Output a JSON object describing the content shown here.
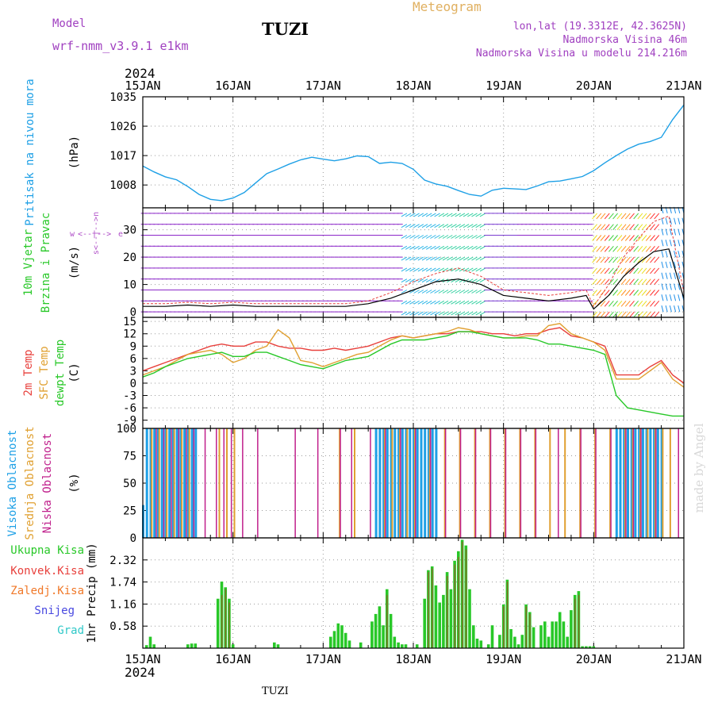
{
  "header": {
    "model_label": "Model",
    "model_name": "wrf-nmm_v3.9.1 e1km",
    "station": "TUZI",
    "meteogram": "Meteogram",
    "lonlat": "lon,lat (19.3312E, 42.3625N)",
    "altitude": "Nadmorska Visina 46m",
    "model_altitude": "Nadmorska Visina u modelu 214.216m",
    "footer_station": "TUZI",
    "watermark": "made by Angel",
    "year": "2024"
  },
  "time_axis": {
    "start": "2024-01-15T00:00Z",
    "end": "2024-01-21T00:00Z",
    "labels": [
      "15JAN",
      "16JAN",
      "17JAN",
      "18JAN",
      "19JAN",
      "20JAN",
      "21JAN"
    ]
  },
  "colors": {
    "pressure": "#1ea0e6",
    "t2m": "#e8403c",
    "tsfc": "#e0a030",
    "tdew": "#28c828",
    "high_cloud": "#1ea0e6",
    "mid_cloud": "#e0a030",
    "low_cloud": "#c0208c",
    "precip_total": "#28c828",
    "precip_conv": "#e8403c",
    "precip_freez": "#f07828",
    "snow": "#4848e0",
    "graupel": "#30c8c8",
    "wind_legend": "#b050c8",
    "header_purple": "#a040c0",
    "header_orange": "#e0b060"
  },
  "chart_data": [
    {
      "type": "line",
      "name": "pressure",
      "ylabel": "(hPa)",
      "side_labels": [
        "Pritisak na nivou mora"
      ],
      "ylim": [
        1001,
        1035
      ],
      "yticks": [
        1008,
        1017,
        1026,
        1035
      ],
      "grid": true,
      "series": [
        {
          "name": "Pritisak na nivou mora",
          "x": [
            0,
            3,
            6,
            9,
            12,
            15,
            18,
            21,
            24,
            27,
            30,
            33,
            36,
            39,
            42,
            45,
            48,
            51,
            54,
            57,
            60,
            63,
            66,
            69,
            72,
            75,
            78,
            81,
            84,
            87,
            90,
            93,
            96,
            99,
            102,
            105,
            108,
            111,
            114,
            117,
            120,
            123,
            126,
            129,
            132,
            135,
            138,
            141,
            144
          ],
          "y": [
            1013.8,
            1012,
            1010.5,
            1009.6,
            1007.5,
            1005.1,
            1003.6,
            1003.2,
            1004,
            1005.7,
            1008.6,
            1011.5,
            1012.9,
            1014.4,
            1015.7,
            1016.5,
            1015.9,
            1015.4,
            1016,
            1016.9,
            1016.7,
            1014.6,
            1015,
            1014.6,
            1012.8,
            1009.5,
            1008.3,
            1007.6,
            1006.3,
            1005.1,
            1004.6,
            1006.4,
            1007,
            1006.8,
            1006.6,
            1007.7,
            1009,
            1009.2,
            1009.9,
            1010.6,
            1012.4,
            1014.8,
            1017,
            1019,
            1020.5,
            1021.3,
            1022.6,
            1028,
            1032.5
          ]
        }
      ]
    },
    {
      "type": "line",
      "name": "wind",
      "ylabel": "(m/s)",
      "side_labels": [
        "10m Vjetar",
        "Brzina i Pravac"
      ],
      "direction_legend": [
        "w",
        "<--|-->",
        "e",
        "s<--|-->n"
      ],
      "ylim": [
        -2,
        38
      ],
      "yticks": [
        0,
        10,
        20,
        30
      ],
      "grid": true,
      "series": [
        {
          "name": "Brzina",
          "x": [
            0,
            6,
            12,
            18,
            24,
            30,
            36,
            42,
            48,
            54,
            60,
            66,
            72,
            78,
            84,
            90,
            96,
            102,
            108,
            114,
            118,
            120,
            124,
            128,
            132,
            136,
            140,
            144
          ],
          "y": [
            2,
            2,
            2.5,
            2,
            2.5,
            2,
            2,
            2,
            2,
            2,
            3,
            5,
            8,
            11,
            12,
            10,
            6,
            5,
            4,
            5,
            6,
            1,
            6,
            13,
            18,
            22,
            23,
            5
          ]
        },
        {
          "name": "Udari",
          "x": [
            0,
            6,
            12,
            18,
            24,
            30,
            36,
            42,
            48,
            54,
            60,
            66,
            72,
            78,
            84,
            90,
            96,
            102,
            108,
            114,
            118,
            120,
            124,
            128,
            132,
            136,
            140,
            144
          ],
          "y": [
            3,
            3,
            3.5,
            3,
            3.5,
            3,
            3,
            3,
            3,
            3,
            4,
            7,
            11,
            14,
            16,
            13,
            8,
            7,
            6,
            7,
            8,
            2,
            10,
            20,
            27,
            33,
            35,
            7
          ]
        }
      ]
    },
    {
      "type": "line",
      "name": "temperature",
      "ylabel": "(C)",
      "side_labels": [
        "2m Temp",
        "SFC Temp",
        "dewpt Temp"
      ],
      "ylim": [
        -11,
        16
      ],
      "yticks": [
        -9,
        -6,
        -3,
        0,
        3,
        6,
        9,
        12,
        15
      ],
      "grid": true,
      "series": [
        {
          "name": "2m Temp",
          "x": [
            0,
            3,
            6,
            9,
            12,
            15,
            18,
            21,
            24,
            27,
            30,
            33,
            36,
            39,
            42,
            45,
            48,
            51,
            54,
            57,
            60,
            63,
            66,
            69,
            72,
            75,
            78,
            81,
            84,
            87,
            90,
            93,
            96,
            99,
            102,
            105,
            108,
            111,
            114,
            117,
            120,
            123,
            126,
            129,
            132,
            135,
            138,
            141,
            144
          ],
          "y": [
            3,
            4,
            5,
            6,
            7,
            8,
            9,
            9.5,
            9,
            9,
            10,
            10,
            9,
            8.5,
            8.5,
            8,
            8,
            8.5,
            8,
            8.5,
            9,
            10,
            11,
            11.5,
            11,
            11.5,
            12,
            12,
            12.5,
            12.5,
            12.5,
            12,
            12,
            11.5,
            12,
            12,
            13,
            13.5,
            11.5,
            11,
            10,
            9,
            2,
            2,
            2,
            4,
            5.5,
            2,
            0
          ]
        },
        {
          "name": "SFC Temp",
          "x": [
            0,
            3,
            6,
            9,
            12,
            15,
            18,
            21,
            24,
            27,
            30,
            33,
            36,
            39,
            42,
            45,
            48,
            51,
            54,
            57,
            60,
            63,
            66,
            69,
            72,
            75,
            78,
            81,
            84,
            87,
            90,
            93,
            96,
            99,
            102,
            105,
            108,
            111,
            114,
            117,
            120,
            123,
            126,
            129,
            132,
            135,
            138,
            141,
            144
          ],
          "y": [
            2,
            3,
            4,
            5.5,
            7,
            7.5,
            8,
            7,
            5,
            6,
            8,
            9,
            13,
            11,
            5.5,
            5,
            4,
            5,
            6,
            7,
            7.5,
            9,
            10.5,
            11.5,
            11,
            11.5,
            12,
            12.5,
            13.5,
            13,
            12,
            11.5,
            11,
            11,
            11.5,
            11.5,
            14,
            14.5,
            12,
            11,
            10,
            8,
            1,
            1,
            1,
            3,
            5,
            1,
            -1
          ]
        },
        {
          "name": "dewpt Temp",
          "x": [
            0,
            3,
            6,
            9,
            12,
            15,
            18,
            21,
            24,
            27,
            30,
            33,
            36,
            39,
            42,
            45,
            48,
            51,
            54,
            57,
            60,
            63,
            66,
            69,
            72,
            75,
            78,
            81,
            84,
            87,
            90,
            93,
            96,
            99,
            102,
            105,
            108,
            111,
            114,
            117,
            120,
            123,
            126,
            129,
            132,
            135,
            138,
            141,
            144
          ],
          "y": [
            1.5,
            2.5,
            4,
            5,
            6,
            6.5,
            7,
            7.5,
            6.5,
            6.5,
            7.5,
            7.5,
            6.5,
            5.5,
            4.5,
            4,
            3.5,
            4.5,
            5.5,
            6,
            6.5,
            8,
            9.5,
            10.5,
            10.5,
            10.5,
            11,
            11.5,
            12.5,
            12.5,
            12,
            11.5,
            11,
            11,
            11,
            10.5,
            9.5,
            9.5,
            9,
            8.5,
            8,
            7,
            -3,
            -6,
            -6.5,
            -7,
            -7.5,
            -8,
            -8
          ]
        }
      ]
    },
    {
      "type": "bar",
      "name": "clouds",
      "ylabel": "(%)",
      "side_labels": [
        "Visoka Oblacnost",
        "Srednja Oblacnost",
        "Niska Oblacnost"
      ],
      "ylim": [
        0,
        100
      ],
      "yticks": [
        0,
        25,
        50,
        75,
        100
      ],
      "grid": true,
      "series": [
        {
          "name": "Visoka Oblacnost",
          "x": [
            0,
            1,
            2,
            3,
            4,
            5,
            6,
            7,
            8,
            9,
            10,
            11,
            12,
            13,
            14,
            62,
            63,
            64,
            65,
            66,
            67,
            68,
            69,
            70,
            71,
            72,
            73,
            74,
            75,
            76,
            77,
            78,
            126,
            127,
            128,
            129,
            130,
            131,
            132,
            133,
            134,
            135,
            136,
            137,
            138
          ],
          "y": [
            30,
            100,
            100,
            100,
            100,
            100,
            100,
            100,
            100,
            100,
            100,
            100,
            100,
            100,
            100,
            100,
            100,
            100,
            100,
            100,
            100,
            100,
            100,
            100,
            100,
            100,
            100,
            100,
            100,
            100,
            100,
            100,
            100,
            100,
            100,
            100,
            100,
            100,
            100,
            100,
            100,
            100,
            100,
            100,
            100
          ]
        },
        {
          "name": "Srednja Oblacnost",
          "x": [
            2,
            4,
            6,
            8,
            10,
            12,
            20,
            22,
            24,
            52,
            56,
            64,
            66,
            68,
            70,
            72,
            76,
            80,
            84,
            88,
            92,
            96,
            100,
            104,
            108,
            112,
            116,
            120,
            124,
            128,
            130,
            132,
            134,
            136,
            138,
            140
          ],
          "y": [
            100,
            100,
            100,
            100,
            100,
            100,
            100,
            100,
            100,
            100,
            100,
            100,
            100,
            100,
            100,
            100,
            100,
            100,
            100,
            100,
            100,
            100,
            100,
            100,
            100,
            100,
            100,
            100,
            100,
            100,
            100,
            100,
            100,
            100,
            100,
            100
          ]
        },
        {
          "name": "Niska Oblacnost",
          "x": [
            3,
            5,
            7,
            9,
            11,
            13,
            16,
            19,
            21,
            23,
            26,
            30,
            40,
            46,
            52,
            55,
            60,
            64,
            68,
            72,
            76,
            80,
            84,
            88,
            92,
            96,
            100,
            104,
            110,
            116,
            120,
            124,
            128,
            130,
            132,
            136,
            142
          ],
          "y": [
            100,
            100,
            100,
            100,
            100,
            100,
            100,
            100,
            100,
            100,
            100,
            100,
            100,
            100,
            100,
            100,
            100,
            100,
            100,
            100,
            100,
            100,
            100,
            100,
            100,
            100,
            100,
            100,
            100,
            100,
            100,
            100,
            100,
            100,
            100,
            100,
            100
          ]
        }
      ]
    },
    {
      "type": "bar",
      "name": "precip",
      "ylabel": "1hr Precip (mm)",
      "side_labels": [
        "Ukupna Kisa",
        "Konvek.Kisa",
        "Zaledj.Kisa",
        "Snijeg",
        "Grad"
      ],
      "ylim": [
        0,
        2.9
      ],
      "yticks": [
        0.58,
        1.16,
        1.74,
        2.32
      ],
      "grid": true,
      "series": [
        {
          "name": "Ukupna Kisa",
          "x": [
            1,
            2,
            3,
            12,
            13,
            14,
            20,
            21,
            22,
            23,
            24,
            35,
            36,
            50,
            51,
            52,
            53,
            54,
            55,
            58,
            61,
            62,
            63,
            64,
            65,
            66,
            67,
            68,
            69,
            70,
            73,
            75,
            76,
            77,
            78,
            79,
            80,
            81,
            82,
            83,
            84,
            85,
            86,
            87,
            88,
            89,
            90,
            92,
            93,
            95,
            96,
            97,
            98,
            99,
            100,
            101,
            102,
            103,
            104,
            106,
            107,
            108,
            109,
            110,
            111,
            112,
            113,
            114,
            115,
            116,
            117,
            118,
            119,
            120
          ],
          "y": [
            0.08,
            0.3,
            0.1,
            0.1,
            0.12,
            0.12,
            1.3,
            1.75,
            1.6,
            1.3,
            0.1,
            0.15,
            0.1,
            0.3,
            0.45,
            0.65,
            0.6,
            0.4,
            0.2,
            0.15,
            0.7,
            0.9,
            1.1,
            0.6,
            1.55,
            0.9,
            0.3,
            0.15,
            0.1,
            0.1,
            0.1,
            1.3,
            2.05,
            2.15,
            1.65,
            1.2,
            1.4,
            2.0,
            1.55,
            2.3,
            2.55,
            2.85,
            2.7,
            1.55,
            0.6,
            0.25,
            0.2,
            0.1,
            0.6,
            0.35,
            1.15,
            1.8,
            0.5,
            0.3,
            0.1,
            0.35,
            1.15,
            0.95,
            0.55,
            0.6,
            0.7,
            0.3,
            0.7,
            0.7,
            0.95,
            0.7,
            0.3,
            1.0,
            1.4,
            1.5,
            0.05,
            0.05,
            0.05,
            0.05
          ]
        },
        {
          "name": "Konvek.Kisa",
          "x": [
            21,
            22,
            23,
            65,
            76,
            77,
            81,
            83,
            84,
            85,
            86,
            96,
            97,
            102,
            103,
            115,
            116
          ],
          "y": [
            1.4,
            1.55,
            1.2,
            1.4,
            2.0,
            2.1,
            1.9,
            2.2,
            2.4,
            2.8,
            2.6,
            1.1,
            1.75,
            1.1,
            0.9,
            1.3,
            1.4
          ]
        }
      ]
    }
  ]
}
